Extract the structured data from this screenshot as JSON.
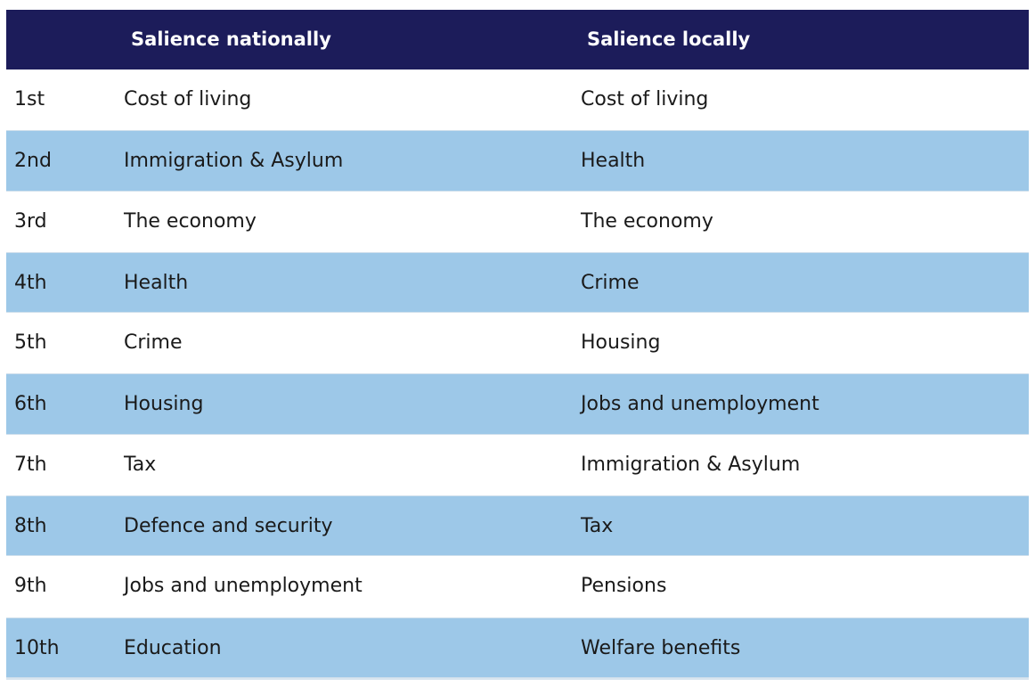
{
  "table": {
    "headers": {
      "rank": "",
      "national": "Salience nationally",
      "local": "Salience locally"
    },
    "rows": [
      {
        "rank": "1st",
        "national": "Cost of living",
        "local": "Cost of living"
      },
      {
        "rank": "2nd",
        "national": "Immigration & Asylum",
        "local": "Health"
      },
      {
        "rank": "3rd",
        "national": "The economy",
        "local": "The economy"
      },
      {
        "rank": "4th",
        "national": "Health",
        "local": "Crime"
      },
      {
        "rank": "5th",
        "national": "Crime",
        "local": "Housing"
      },
      {
        "rank": "6th",
        "national": "Housing",
        "local": "Jobs and unemployment"
      },
      {
        "rank": "7th",
        "national": "Tax",
        "local": "Immigration & Asylum"
      },
      {
        "rank": "8th",
        "national": "Defence and security",
        "local": "Tax"
      },
      {
        "rank": "9th",
        "national": "Jobs and unemployment",
        "local": "Pensions"
      },
      {
        "rank": "10th",
        "national": "Education",
        "local": "Welfare benefits"
      }
    ]
  },
  "colors": {
    "header_bg": "#1c1c5a",
    "stripe_bg": "#9dc8e8",
    "row_bg": "#ffffff"
  }
}
